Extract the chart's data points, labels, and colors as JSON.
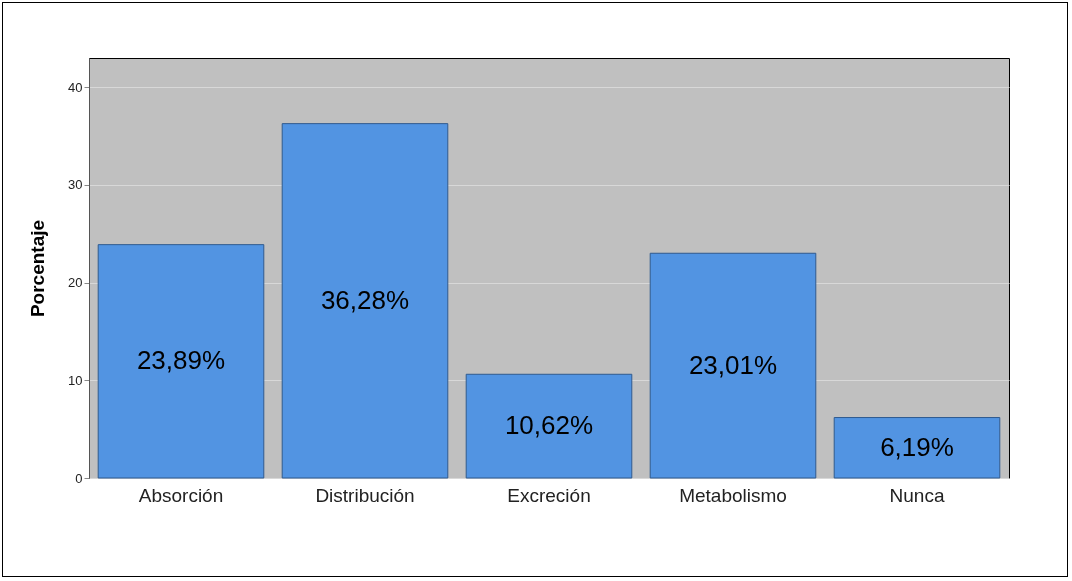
{
  "chart_data": {
    "type": "bar",
    "ylabel": "Porcentaje",
    "categories": [
      "Absorción",
      "Distribución",
      "Excreción",
      "Metabolismo",
      "Nunca"
    ],
    "values": [
      23.89,
      36.28,
      10.62,
      23.01,
      6.19
    ],
    "value_labels": [
      "23,89%",
      "36,28%",
      "10,62%",
      "23,01%",
      "6,19%"
    ],
    "color": "#5294e2",
    "ylim": [
      0,
      43
    ],
    "yticks": [
      0,
      10,
      20,
      30,
      40
    ],
    "grid": "y"
  }
}
